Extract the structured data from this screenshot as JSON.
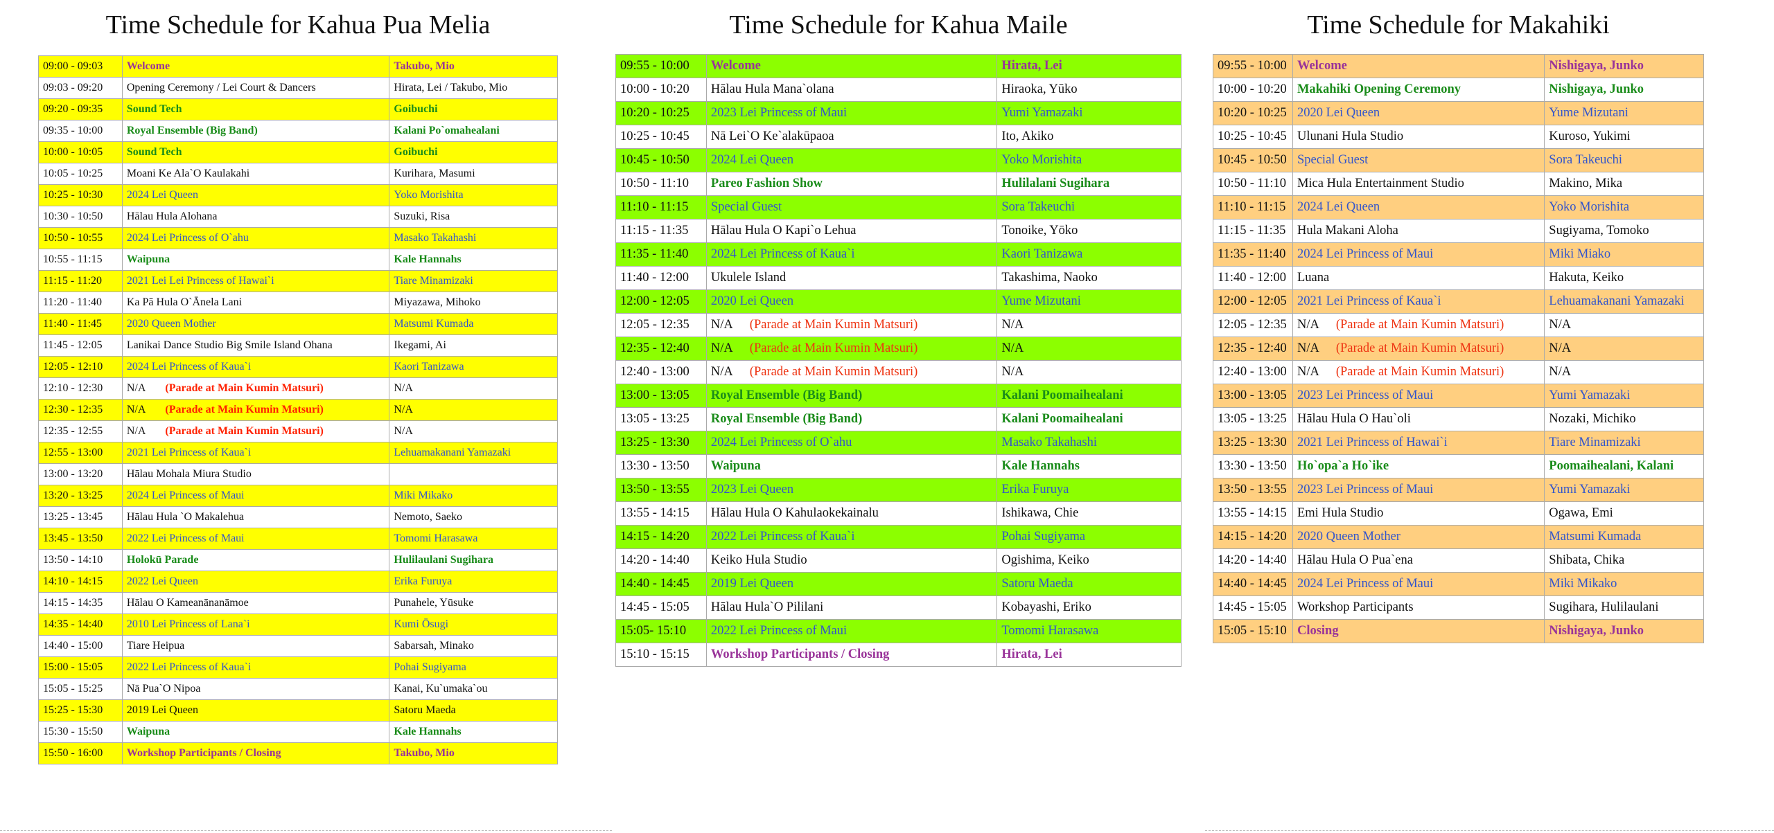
{
  "tables": [
    {
      "title": "Time Schedule for Kahua Pua Melia",
      "fill": "#ffff00",
      "note_color": "#ff2200",
      "rows": [
        {
          "time": "09:00 - 09:03",
          "program": "Welcome",
          "performer": "Takubo, Mio",
          "highlight": true,
          "color": "#993399",
          "bold": true
        },
        {
          "time": "09:03 - 09:20",
          "program": "Opening Ceremony / Lei Court & Dancers",
          "performer": "Hirata, Lei / Takubo, Mio",
          "highlight": false,
          "color": "#111111",
          "bold": false
        },
        {
          "time": "09:20 - 09:35",
          "program": "Sound Tech",
          "performer": "Goibuchi",
          "highlight": true,
          "color": "#1a8c1a",
          "bold": true
        },
        {
          "time": "09:35 - 10:00",
          "program": "Royal Ensemble (Big Band)",
          "performer": "Kalani Po`omahealani",
          "highlight": false,
          "color": "#1a8c1a",
          "bold": true
        },
        {
          "time": "10:00 - 10:05",
          "program": "Sound Tech",
          "performer": "Goibuchi",
          "highlight": true,
          "color": "#1a8c1a",
          "bold": true
        },
        {
          "time": "10:05 - 10:25",
          "program": "Moani Ke Ala`O Kaulakahi",
          "performer": "Kurihara, Masumi",
          "highlight": false,
          "color": "#111111",
          "bold": false
        },
        {
          "time": "10:25 - 10:30",
          "program": "2024 Lei Queen",
          "performer": "Yoko Morishita",
          "highlight": true,
          "color": "#3355cc",
          "bold": false
        },
        {
          "time": "10:30 - 10:50",
          "program": "Hālau Hula Alohana",
          "performer": "Suzuki, Risa",
          "highlight": false,
          "color": "#111111",
          "bold": false
        },
        {
          "time": "10:50 - 10:55",
          "program": "2024 Lei Princess of O`ahu",
          "performer": "Masako Takahashi",
          "highlight": true,
          "color": "#3355cc",
          "bold": false
        },
        {
          "time": "10:55 - 11:15",
          "program": "Waipuna",
          "performer": "Kale Hannahs",
          "highlight": false,
          "color": "#1a8c1a",
          "bold": true
        },
        {
          "time": "11:15 - 11:20",
          "program": "2021 Lei Lei Princess of Hawai`i",
          "performer": "Tiare Minamizaki",
          "highlight": true,
          "color": "#3355cc",
          "bold": false
        },
        {
          "time": "11:20 - 11:40",
          "program": "Ka Pā Hula O`Ānela Lani",
          "performer": "Miyazawa, Mihoko",
          "highlight": false,
          "color": "#111111",
          "bold": false
        },
        {
          "time": "11:40 - 11:45",
          "program": "2020 Queen Mother",
          "performer": "Matsumi Kumada",
          "highlight": true,
          "color": "#3355cc",
          "bold": false
        },
        {
          "time": "11:45 - 12:05",
          "program": "Lanikai Dance Studio Big Smile Island Ohana",
          "performer": "Ikegami, Ai",
          "highlight": false,
          "color": "#111111",
          "bold": false
        },
        {
          "time": "12:05 - 12:10",
          "program": "2024 Lei Princess of Kaua`i",
          "performer": "Kaori Tanizawa",
          "highlight": true,
          "color": "#3355cc",
          "bold": false
        },
        {
          "time": "12:10 - 12:30",
          "program": "N/A",
          "note": "(Parade at Main Kumin Matsuri)",
          "performer": "N/A",
          "highlight": false,
          "color": "#111111",
          "bold": false
        },
        {
          "time": "12:30 - 12:35",
          "program": "N/A",
          "note": "(Parade at Main Kumin Matsuri)",
          "performer": "N/A",
          "highlight": true,
          "color": "#111111",
          "bold": false
        },
        {
          "time": "12:35 - 12:55",
          "program": "N/A",
          "note": "(Parade at Main Kumin Matsuri)",
          "performer": "N/A",
          "highlight": false,
          "color": "#111111",
          "bold": false
        },
        {
          "time": "12:55 - 13:00",
          "program": "2021 Lei Princess of Kaua`i",
          "performer": "Lehuamakanani Yamazaki",
          "highlight": true,
          "color": "#3355cc",
          "bold": false
        },
        {
          "time": "13:00 - 13:20",
          "program": "Hālau Mohala Miura Studio",
          "performer": null,
          "highlight": false,
          "color": "#111111",
          "bold": false
        },
        {
          "time": "13:20 - 13:25",
          "program": "2024 Lei Princess of Maui",
          "performer": "Miki Mikako",
          "highlight": true,
          "color": "#3355cc",
          "bold": false
        },
        {
          "time": "13:25 - 13:45",
          "program": "Hālau Hula `O Makalehua",
          "performer": "Nemoto, Saeko",
          "highlight": false,
          "color": "#111111",
          "bold": false
        },
        {
          "time": "13:45 - 13:50",
          "program": "2022 Lei Princess of Maui",
          "performer": "Tomomi Harasawa",
          "highlight": true,
          "color": "#3355cc",
          "bold": false
        },
        {
          "time": "13:50 - 14:10",
          "program": "Holokū Parade",
          "performer": "Hulilaulani Sugihara",
          "highlight": false,
          "color": "#1a8c1a",
          "bold": true
        },
        {
          "time": "14:10 - 14:15",
          "program": "2022 Lei Queen",
          "performer": "Erika Furuya",
          "highlight": true,
          "color": "#3355cc",
          "bold": false
        },
        {
          "time": "14:15 - 14:35",
          "program": "Hālau O Kameanānanāmoe",
          "performer": "Punahele, Yūsuke",
          "highlight": false,
          "color": "#111111",
          "bold": false
        },
        {
          "time": "14:35 - 14:40",
          "program": "2010 Lei Princess of Lana`i",
          "performer": "Kumi Ōsugi",
          "highlight": true,
          "color": "#3355cc",
          "bold": false
        },
        {
          "time": "14:40 - 15:00",
          "program": "Tiare Heipua",
          "performer": "Sabarsah, Minako",
          "highlight": false,
          "color": "#111111",
          "bold": false
        },
        {
          "time": "15:00 - 15:05",
          "program": "2022 Lei Princess of Kaua`i",
          "performer": "Pohai Sugiyama",
          "highlight": true,
          "color": "#3355cc",
          "bold": false
        },
        {
          "time": "15:05 - 15:25",
          "program": "Nā Pua`O Nipoa",
          "performer": "Kanai, Ku`umaka`ou",
          "highlight": false,
          "color": "#111111",
          "bold": false
        },
        {
          "time": "15:25 - 15:30",
          "program": "2019 Lei Queen",
          "performer": "Satoru Maeda",
          "highlight": true,
          "color": "#111111",
          "bold": false
        },
        {
          "time": "15:30 - 15:50",
          "program": "Waipuna",
          "performer": "Kale Hannahs",
          "highlight": false,
          "color": "#1a8c1a",
          "bold": true
        },
        {
          "time": "15:50 - 16:00",
          "program": "Workshop Participants / Closing",
          "performer": "Takubo, Mio",
          "highlight": true,
          "color": "#993399",
          "bold": true
        }
      ]
    },
    {
      "title": "Time Schedule for Kahua Maile",
      "fill": "#8cff00",
      "note_color": "#ee3311",
      "rows": [
        {
          "time": "09:55 - 10:00",
          "program": "Welcome",
          "performer": "Hirata, Lei",
          "highlight": true,
          "color": "#993399",
          "bold": true
        },
        {
          "time": "10:00 - 10:20",
          "program": "Hālau Hula Mana`olana",
          "performer": "Hiraoka, Yūko",
          "highlight": false,
          "color": "#111111",
          "bold": false
        },
        {
          "time": "10:20 - 10:25",
          "program": "2023 Lei Princess of Maui",
          "performer": "Yumi Yamazaki",
          "highlight": true,
          "color": "#3355cc",
          "bold": false
        },
        {
          "time": "10:25 - 10:45",
          "program": "Nā Lei`O Ke`alakūpaoa",
          "performer": "Ito, Akiko",
          "highlight": false,
          "color": "#111111",
          "bold": false
        },
        {
          "time": "10:45 - 10:50",
          "program": "2024 Lei Queen",
          "performer": "Yoko Morishita",
          "highlight": true,
          "color": "#3355cc",
          "bold": false
        },
        {
          "time": "10:50 - 11:10",
          "program": "Pareo Fashion Show",
          "performer": "Hulilalani Sugihara",
          "highlight": false,
          "color": "#1a8c1a",
          "bold": true
        },
        {
          "time": "11:10 - 11:15",
          "program": "Special Guest",
          "performer": "Sora Takeuchi",
          "highlight": true,
          "color": "#3355cc",
          "bold": false
        },
        {
          "time": "11:15 - 11:35",
          "program": "Hālau Hula O Kapi`o Lehua",
          "performer": "Tonoike, Yōko",
          "highlight": false,
          "color": "#111111",
          "bold": false
        },
        {
          "time": "11:35 - 11:40",
          "program": "2024 Lei Princess of Kaua`i",
          "performer": "Kaori Tanizawa",
          "highlight": true,
          "color": "#3355cc",
          "bold": false
        },
        {
          "time": "11:40 - 12:00",
          "program": "Ukulele Island",
          "performer": "Takashima, Naoko",
          "highlight": false,
          "color": "#111111",
          "bold": false
        },
        {
          "time": "12:00 - 12:05",
          "program": "2020 Lei Queen",
          "performer": "Yume Mizutani",
          "highlight": true,
          "color": "#3355cc",
          "bold": false
        },
        {
          "time": "12:05 - 12:35",
          "program": "N/A",
          "note": "(Parade at Main Kumin Matsuri)",
          "performer": "N/A",
          "highlight": false,
          "color": "#111111",
          "bold": false
        },
        {
          "time": "12:35 - 12:40",
          "program": "N/A",
          "note": "(Parade at Main Kumin Matsuri)",
          "performer": "N/A",
          "highlight": true,
          "color": "#111111",
          "bold": false
        },
        {
          "time": "12:40 - 13:00",
          "program": "N/A",
          "note": "(Parade at Main Kumin Matsuri)",
          "performer": "N/A",
          "highlight": false,
          "color": "#111111",
          "bold": false
        },
        {
          "time": "13:00 - 13:05",
          "program": "Royal Ensemble (Big Band)",
          "performer": "Kalani Poomaihealani",
          "highlight": true,
          "color": "#1a8c1a",
          "bold": true
        },
        {
          "time": "13:05 - 13:25",
          "program": "Royal Ensemble (Big Band)",
          "performer": "Kalani Poomaihealani",
          "highlight": false,
          "color": "#1a8c1a",
          "bold": true
        },
        {
          "time": "13:25 - 13:30",
          "program": "2024 Lei Princess of O`ahu",
          "performer": "Masako Takahashi",
          "highlight": true,
          "color": "#3355cc",
          "bold": false
        },
        {
          "time": "13:30 - 13:50",
          "program": "Waipuna",
          "performer": "Kale Hannahs",
          "highlight": false,
          "color": "#1a8c1a",
          "bold": true
        },
        {
          "time": "13:50 - 13:55",
          "program": "2023 Lei Queen",
          "performer": "Erika Furuya",
          "highlight": true,
          "color": "#3355cc",
          "bold": false
        },
        {
          "time": "13:55 - 14:15",
          "program": "Hālau Hula O Kahulaokekainalu",
          "performer": "Ishikawa, Chie",
          "highlight": false,
          "color": "#111111",
          "bold": false
        },
        {
          "time": "14:15 - 14:20",
          "program": "2022 Lei Princess of Kaua`i",
          "performer": "Pohai Sugiyama",
          "highlight": true,
          "color": "#3355cc",
          "bold": false
        },
        {
          "time": "14:20 - 14:40",
          "program": "Keiko Hula Studio",
          "performer": "Ogishima, Keiko",
          "highlight": false,
          "color": "#111111",
          "bold": false
        },
        {
          "time": "14:40 - 14:45",
          "program": "2019 Lei Queen",
          "performer": "Satoru Maeda",
          "highlight": true,
          "color": "#3355cc",
          "bold": false
        },
        {
          "time": "14:45 - 15:05",
          "program": "Hālau Hula`O Pililani",
          "performer": "Kobayashi, Eriko",
          "highlight": false,
          "color": "#111111",
          "bold": false
        },
        {
          "time": "15:05- 15:10",
          "program": "2022 Lei Princess of Maui",
          "performer": "Tomomi Harasawa",
          "highlight": true,
          "color": "#3355cc",
          "bold": false
        },
        {
          "time": "15:10 - 15:15",
          "program": "Workshop Participants / Closing",
          "performer": "Hirata, Lei",
          "highlight": false,
          "color": "#993399",
          "bold": true
        }
      ]
    },
    {
      "title": "Time Schedule for Makahiki",
      "fill": "#ffcf80",
      "note_color": "#ee3311",
      "rows": [
        {
          "time": "09:55 - 10:00",
          "program": "Welcome",
          "performer": "Nishigaya, Junko",
          "highlight": true,
          "color": "#993399",
          "bold": true
        },
        {
          "time": "10:00 - 10:20",
          "program": "Makahiki Opening Ceremony",
          "performer": "Nishigaya, Junko",
          "highlight": false,
          "color": "#1a8c1a",
          "bold": true
        },
        {
          "time": "10:20 - 10:25",
          "program": "2020 Lei Queen",
          "performer": "Yume Mizutani",
          "highlight": true,
          "color": "#3355cc",
          "bold": false
        },
        {
          "time": "10:25 - 10:45",
          "program": "Ulunani Hula Studio",
          "performer": "Kuroso, Yukimi",
          "highlight": false,
          "color": "#111111",
          "bold": false
        },
        {
          "time": "10:45 - 10:50",
          "program": "Special Guest",
          "performer": "Sora Takeuchi",
          "highlight": true,
          "color": "#3355cc",
          "bold": false
        },
        {
          "time": "10:50 - 11:10",
          "program": "Mica Hula Entertainment Studio",
          "performer": "Makino, Mika",
          "highlight": false,
          "color": "#111111",
          "bold": false
        },
        {
          "time": "11:10 - 11:15",
          "program": "2024 Lei Queen",
          "performer": "Yoko Morishita",
          "highlight": true,
          "color": "#3355cc",
          "bold": false
        },
        {
          "time": "11:15 - 11:35",
          "program": "Hula Makani Aloha",
          "performer": "Sugiyama, Tomoko",
          "highlight": false,
          "color": "#111111",
          "bold": false
        },
        {
          "time": "11:35 - 11:40",
          "program": "2024 Lei Princess of Maui",
          "performer": "Miki Miako",
          "highlight": true,
          "color": "#3355cc",
          "bold": false
        },
        {
          "time": "11:40 - 12:00",
          "program": "Luana",
          "performer": "Hakuta, Keiko",
          "highlight": false,
          "color": "#111111",
          "bold": false
        },
        {
          "time": "12:00 - 12:05",
          "program": "2021 Lei Princess of Kaua`i",
          "performer": "Lehuamakanani Yamazaki",
          "highlight": true,
          "color": "#3355cc",
          "bold": false
        },
        {
          "time": "12:05 - 12:35",
          "program": "N/A",
          "note": "(Parade at Main Kumin Matsuri)",
          "performer": "N/A",
          "highlight": false,
          "color": "#111111",
          "bold": false
        },
        {
          "time": "12:35 - 12:40",
          "program": "N/A",
          "note": "(Parade at Main Kumin Matsuri)",
          "performer": "N/A",
          "highlight": true,
          "color": "#111111",
          "bold": false
        },
        {
          "time": "12:40 - 13:00",
          "program": "N/A",
          "note": "(Parade at Main Kumin Matsuri)",
          "performer": "N/A",
          "highlight": false,
          "color": "#111111",
          "bold": false
        },
        {
          "time": "13:00 - 13:05",
          "program": "2023 Lei Princess of Maui",
          "performer": "Yumi Yamazaki",
          "highlight": true,
          "color": "#3355cc",
          "bold": false
        },
        {
          "time": "13:05 - 13:25",
          "program": "Hālau Hula O Hau`oli",
          "performer": "Nozaki, Michiko",
          "highlight": false,
          "color": "#111111",
          "bold": false
        },
        {
          "time": "13:25 - 13:30",
          "program": "2021 Lei Princess of Hawai`i",
          "performer": "Tiare Minamizaki",
          "highlight": true,
          "color": "#3355cc",
          "bold": false
        },
        {
          "time": "13:30 - 13:50",
          "program": "Ho`opa`a Ho`ike",
          "performer": "Poomaihealani, Kalani",
          "highlight": false,
          "color": "#1a8c1a",
          "bold": true
        },
        {
          "time": "13:50 - 13:55",
          "program": "2023 Lei Princess of Maui",
          "performer": "Yumi Yamazaki",
          "highlight": true,
          "color": "#3355cc",
          "bold": false
        },
        {
          "time": "13:55 - 14:15",
          "program": "Emi Hula Studio",
          "performer": "Ogawa, Emi",
          "highlight": false,
          "color": "#111111",
          "bold": false
        },
        {
          "time": "14:15 - 14:20",
          "program": "2020 Queen Mother",
          "performer": "Matsumi Kumada",
          "highlight": true,
          "color": "#3355cc",
          "bold": false
        },
        {
          "time": "14:20 - 14:40",
          "program": "Hālau Hula O Pua`ena",
          "performer": "Shibata, Chika",
          "highlight": false,
          "color": "#111111",
          "bold": false
        },
        {
          "time": "14:40 - 14:45",
          "program": "2024 Lei Princess of Maui",
          "performer": "Miki Mikako",
          "highlight": true,
          "color": "#3355cc",
          "bold": false
        },
        {
          "time": "14:45 - 15:05",
          "program": "Workshop Participants",
          "performer": "Sugihara, Hulilaulani",
          "highlight": false,
          "color": "#111111",
          "bold": false
        },
        {
          "time": "15:05 - 15:10",
          "program": "Closing",
          "performer": "Nishigaya, Junko",
          "highlight": true,
          "color": "#993399",
          "bold": true
        }
      ]
    }
  ]
}
